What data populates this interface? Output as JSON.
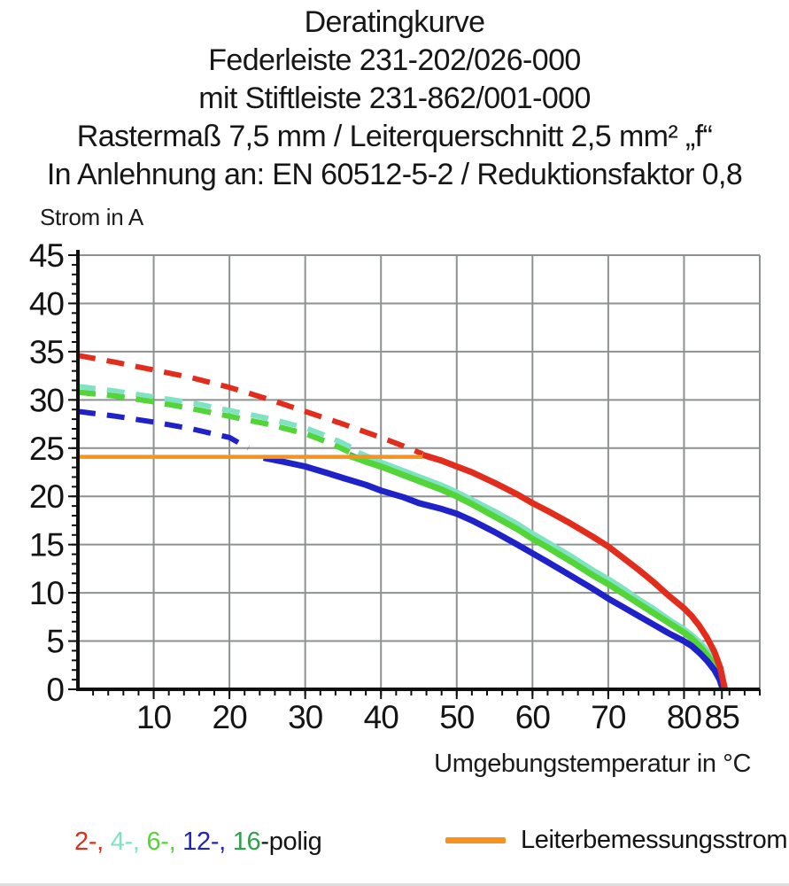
{
  "title": {
    "lines": [
      "Deratingkurve",
      "Federleiste 231-202/026-000",
      "mit Stiftleiste 231-862/001-000",
      "Rastermaß 7,5 mm / Leiterquerschnitt 2,5 mm² „f“",
      "In Anlehnung an: EN 60512-5-2 / Reduktionsfaktor 0,8"
    ]
  },
  "axes": {
    "y_label": "Strom in A",
    "x_label": "Umgebungstemperatur in °C"
  },
  "legend": {
    "pole_items": [
      {
        "text": "2-,",
        "color": "#e22d1d"
      },
      {
        "text": "4-,",
        "color": "#7fe3c3"
      },
      {
        "text": "6-,",
        "color": "#53d437"
      },
      {
        "text": "12-,",
        "color": "#1f22c8"
      },
      {
        "text": "16",
        "color": "#2ea24b"
      }
    ],
    "pole_suffix": "-polig",
    "rated_current_label": "Leiterbemessungsstrom",
    "rated_current_color": "#f6921e"
  },
  "colors": {
    "grid": "#8d9290",
    "axis": "#101010",
    "text": "#141414"
  },
  "chart_data": {
    "type": "line",
    "title": "Deratingkurve Federleiste 231-202/026-000 mit Stiftleiste 231-862/001-000",
    "xlabel": "Umgebungstemperatur in °C",
    "ylabel": "Strom in A",
    "xlim": [
      0,
      90
    ],
    "ylim": [
      0,
      45
    ],
    "grid": true,
    "legend_position": "bottom",
    "x_major_ticks": [
      10,
      20,
      30,
      40,
      50,
      60,
      70,
      80,
      85
    ],
    "x_grid_step": 10,
    "x_minor_tick_step": 2,
    "y_major_ticks": [
      0,
      5,
      10,
      15,
      20,
      25,
      30,
      35,
      40,
      45
    ],
    "y_grid_step": 5,
    "y_minor_tick_step": 1,
    "series": [
      {
        "name": "16-polig",
        "color": "#2ea24b",
        "segments": [
          {
            "style": "dashed",
            "points": [
              [
                0,
                30.8
              ],
              [
                5,
                30.4
              ],
              [
                10,
                29.8
              ],
              [
                15,
                29.1
              ],
              [
                20,
                28.3
              ],
              [
                25,
                27.5
              ],
              [
                30,
                26.5
              ],
              [
                33,
                25.6
              ],
              [
                35,
                24.9
              ],
              [
                35.8,
                24.6
              ]
            ]
          },
          {
            "style": "solid",
            "points": [
              [
                35.8,
                24.3
              ],
              [
                38,
                23.6
              ],
              [
                40,
                23.1
              ],
              [
                42,
                22.5
              ],
              [
                45,
                21.6
              ],
              [
                48,
                20.7
              ],
              [
                50,
                20.0
              ],
              [
                52,
                19.2
              ],
              [
                55,
                18.0
              ],
              [
                58,
                16.7
              ],
              [
                60,
                15.7
              ],
              [
                62,
                14.8
              ],
              [
                65,
                13.4
              ],
              [
                68,
                11.9
              ],
              [
                70,
                11.0
              ],
              [
                72,
                10.0
              ],
              [
                74,
                8.9
              ],
              [
                76,
                7.9
              ],
              [
                78,
                6.9
              ],
              [
                80,
                5.9
              ],
              [
                81,
                5.3
              ],
              [
                82,
                4.6
              ],
              [
                83,
                3.7
              ],
              [
                84,
                2.6
              ],
              [
                84.8,
                1.2
              ],
              [
                85.2,
                0
              ]
            ]
          }
        ]
      },
      {
        "name": "4-polig",
        "color": "#7fe3c3",
        "segments": [
          {
            "style": "dashed",
            "points": [
              [
                0,
                31.4
              ],
              [
                5,
                30.9
              ],
              [
                10,
                30.3
              ],
              [
                15,
                29.7
              ],
              [
                20,
                28.9
              ],
              [
                25,
                28.1
              ],
              [
                30,
                27.1
              ],
              [
                33,
                26.2
              ],
              [
                35,
                25.5
              ],
              [
                37,
                24.7
              ]
            ]
          },
          {
            "style": "solid",
            "points": [
              [
                37,
                24.5
              ],
              [
                40,
                23.5
              ],
              [
                42,
                22.9
              ],
              [
                45,
                22.0
              ],
              [
                48,
                21.1
              ],
              [
                50,
                20.4
              ],
              [
                52,
                19.6
              ],
              [
                55,
                18.4
              ],
              [
                58,
                17.1
              ],
              [
                60,
                16.1
              ],
              [
                62,
                15.2
              ],
              [
                65,
                13.8
              ],
              [
                68,
                12.3
              ],
              [
                70,
                11.4
              ],
              [
                72,
                10.4
              ],
              [
                74,
                9.3
              ],
              [
                76,
                8.3
              ],
              [
                78,
                7.2
              ],
              [
                80,
                6.2
              ],
              [
                81,
                5.6
              ],
              [
                82,
                4.9
              ],
              [
                83,
                4.0
              ],
              [
                84,
                2.8
              ],
              [
                84.8,
                1.4
              ],
              [
                85.3,
                0
              ]
            ]
          }
        ]
      },
      {
        "name": "6-polig",
        "color": "#53d437",
        "segments": [
          {
            "style": "dashed",
            "points": [
              [
                0,
                30.8
              ],
              [
                5,
                30.4
              ],
              [
                10,
                29.8
              ],
              [
                15,
                29.1
              ],
              [
                20,
                28.3
              ],
              [
                25,
                27.5
              ],
              [
                30,
                26.5
              ],
              [
                33,
                25.6
              ],
              [
                35,
                24.9
              ],
              [
                35.8,
                24.6
              ]
            ]
          },
          {
            "style": "solid",
            "points": [
              [
                35.8,
                24.2
              ],
              [
                38,
                23.6
              ],
              [
                40,
                23.1
              ],
              [
                42,
                22.5
              ],
              [
                45,
                21.6
              ],
              [
                48,
                20.7
              ],
              [
                50,
                20.0
              ],
              [
                52,
                19.2
              ],
              [
                55,
                17.9
              ],
              [
                58,
                16.6
              ],
              [
                60,
                15.6
              ],
              [
                62,
                14.7
              ],
              [
                65,
                13.3
              ],
              [
                68,
                11.8
              ],
              [
                70,
                10.9
              ],
              [
                72,
                9.9
              ],
              [
                74,
                8.9
              ],
              [
                76,
                7.9
              ],
              [
                78,
                6.9
              ],
              [
                80,
                5.9
              ],
              [
                81,
                5.3
              ],
              [
                82,
                4.5
              ],
              [
                83,
                3.6
              ],
              [
                84,
                2.5
              ],
              [
                84.8,
                1.1
              ],
              [
                85.2,
                0
              ]
            ]
          }
        ]
      },
      {
        "name": "12-polig",
        "color": "#1f22c8",
        "segments": [
          {
            "style": "dashed",
            "points": [
              [
                0,
                28.8
              ],
              [
                5,
                28.3
              ],
              [
                10,
                27.7
              ],
              [
                15,
                27.0
              ],
              [
                20,
                26.1
              ],
              [
                22.5,
                25.0
              ]
            ]
          },
          {
            "style": "solid",
            "points": [
              [
                24.5,
                24.0
              ],
              [
                27,
                23.6
              ],
              [
                30,
                23.1
              ],
              [
                33,
                22.4
              ],
              [
                35,
                21.9
              ],
              [
                38,
                21.2
              ],
              [
                40,
                20.6
              ],
              [
                43,
                19.9
              ],
              [
                45,
                19.3
              ],
              [
                48,
                18.7
              ],
              [
                50,
                18.2
              ],
              [
                52,
                17.5
              ],
              [
                55,
                16.3
              ],
              [
                58,
                15.0
              ],
              [
                60,
                14.1
              ],
              [
                62,
                13.2
              ],
              [
                65,
                11.8
              ],
              [
                68,
                10.4
              ],
              [
                70,
                9.4
              ],
              [
                72,
                8.5
              ],
              [
                74,
                7.6
              ],
              [
                76,
                6.7
              ],
              [
                78,
                5.8
              ],
              [
                80,
                5.0
              ],
              [
                81,
                4.5
              ],
              [
                82,
                3.8
              ],
              [
                83,
                3.0
              ],
              [
                84,
                2.0
              ],
              [
                84.7,
                1.0
              ],
              [
                85.1,
                0
              ]
            ]
          }
        ]
      },
      {
        "name": "2-polig",
        "color": "#e22d1d",
        "segments": [
          {
            "style": "dashed",
            "points": [
              [
                0,
                34.6
              ],
              [
                5,
                33.9
              ],
              [
                10,
                33.1
              ],
              [
                15,
                32.3
              ],
              [
                20,
                31.3
              ],
              [
                25,
                30.1
              ],
              [
                30,
                28.8
              ],
              [
                35,
                27.5
              ],
              [
                40,
                26.1
              ],
              [
                43,
                25.2
              ],
              [
                45.5,
                24.4
              ]
            ]
          },
          {
            "style": "solid",
            "points": [
              [
                45.5,
                24.3
              ],
              [
                48,
                23.7
              ],
              [
                50,
                23.1
              ],
              [
                52,
                22.5
              ],
              [
                55,
                21.4
              ],
              [
                58,
                20.2
              ],
              [
                60,
                19.3
              ],
              [
                62,
                18.5
              ],
              [
                65,
                17.2
              ],
              [
                68,
                15.8
              ],
              [
                70,
                14.8
              ],
              [
                72,
                13.6
              ],
              [
                74,
                12.4
              ],
              [
                76,
                11.1
              ],
              [
                78,
                9.7
              ],
              [
                80,
                8.4
              ],
              [
                81,
                7.6
              ],
              [
                82,
                6.6
              ],
              [
                83,
                5.4
              ],
              [
                84,
                3.9
              ],
              [
                84.8,
                2.2
              ],
              [
                85.4,
                0
              ]
            ]
          }
        ]
      },
      {
        "name": "Leiterbemessungsstrom",
        "color": "#f6921e",
        "line_width": 4.5,
        "segments": [
          {
            "style": "solid",
            "points": [
              [
                0,
                24.1
              ],
              [
                45.5,
                24.1
              ]
            ]
          }
        ]
      }
    ]
  }
}
